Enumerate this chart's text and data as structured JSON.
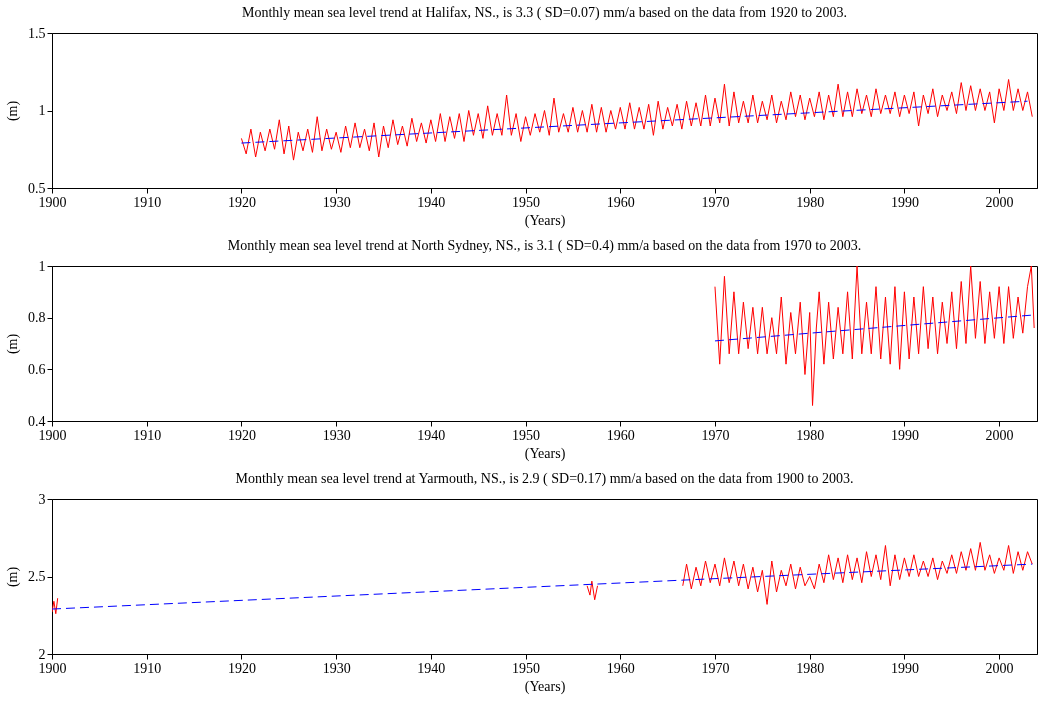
{
  "chart_data": [
    {
      "type": "line",
      "title": "Monthly mean sea level trend at Halifax, NS., is 3.3 ( SD=0.07) mm/a based on the data from 1920 to 2003.",
      "xlabel": "(Years)",
      "ylabel": "(m)",
      "xlim": [
        1900,
        2004
      ],
      "xticks": [
        1900,
        1910,
        1920,
        1930,
        1940,
        1950,
        1960,
        1970,
        1980,
        1990,
        2000
      ],
      "ylim": [
        0.5,
        1.5
      ],
      "yticks": [
        0.5,
        1,
        1.5
      ],
      "grid": false,
      "series": [
        {
          "color": "#ff0000",
          "line_style": "solid",
          "x": [
            1920,
            1920.5,
            1921,
            1921.5,
            1922,
            1922.5,
            1923,
            1923.5,
            1924,
            1924.5,
            1925,
            1925.5,
            1926,
            1926.5,
            1927,
            1927.5,
            1928,
            1928.5,
            1929,
            1929.5,
            1930,
            1930.5,
            1931,
            1931.5,
            1932,
            1932.5,
            1933,
            1933.5,
            1934,
            1934.5,
            1935,
            1935.5,
            1936,
            1936.5,
            1937,
            1937.5,
            1938,
            1938.5,
            1939,
            1939.5,
            1940,
            1940.5,
            1941,
            1941.5,
            1942,
            1942.5,
            1943,
            1943.5,
            1944,
            1944.5,
            1945,
            1945.5,
            1946,
            1946.5,
            1947,
            1947.5,
            1948,
            1948.5,
            1949,
            1949.5,
            1950,
            1950.5,
            1951,
            1951.5,
            1952,
            1952.5,
            1953,
            1953.5,
            1954,
            1954.5,
            1955,
            1955.5,
            1956,
            1956.5,
            1957,
            1957.5,
            1958,
            1958.5,
            1959,
            1959.5,
            1960,
            1960.5,
            1961,
            1961.5,
            1962,
            1962.5,
            1963,
            1963.5,
            1964,
            1964.5,
            1965,
            1965.5,
            1966,
            1966.5,
            1967,
            1967.5,
            1968,
            1968.5,
            1969,
            1969.5,
            1970,
            1970.5,
            1971,
            1971.5,
            1972,
            1972.5,
            1973,
            1973.5,
            1974,
            1974.5,
            1975,
            1975.5,
            1976,
            1976.5,
            1977,
            1977.5,
            1978,
            1978.5,
            1979,
            1979.5,
            1980,
            1980.5,
            1981,
            1981.5,
            1982,
            1982.5,
            1983,
            1983.5,
            1984,
            1984.5,
            1985,
            1985.5,
            1986,
            1986.5,
            1987,
            1987.5,
            1988,
            1988.5,
            1989,
            1989.5,
            1990,
            1990.5,
            1991,
            1991.5,
            1992,
            1992.5,
            1993,
            1993.5,
            1994,
            1994.5,
            1995,
            1995.5,
            1996,
            1996.5,
            1997,
            1997.5,
            1998,
            1998.5,
            1999,
            1999.5,
            2000,
            2000.5,
            2001,
            2001.5,
            2002,
            2002.5,
            2003,
            2003.5
          ],
          "values": [
            0.82,
            0.72,
            0.88,
            0.7,
            0.86,
            0.74,
            0.88,
            0.75,
            0.94,
            0.72,
            0.9,
            0.68,
            0.86,
            0.74,
            0.88,
            0.73,
            0.96,
            0.74,
            0.88,
            0.75,
            0.86,
            0.73,
            0.9,
            0.76,
            0.92,
            0.76,
            0.88,
            0.74,
            0.92,
            0.7,
            0.9,
            0.76,
            0.94,
            0.78,
            0.9,
            0.77,
            0.95,
            0.8,
            0.92,
            0.79,
            0.94,
            0.8,
            0.98,
            0.8,
            0.96,
            0.82,
            0.98,
            0.8,
            1.0,
            0.84,
            0.98,
            0.82,
            1.03,
            0.84,
            0.98,
            0.84,
            1.1,
            0.84,
            0.98,
            0.8,
            0.96,
            0.84,
            0.98,
            0.86,
            1.0,
            0.84,
            1.08,
            0.86,
            0.98,
            0.86,
            1.02,
            0.86,
            1.0,
            0.86,
            1.04,
            0.86,
            1.02,
            0.86,
            1.0,
            0.88,
            1.02,
            0.88,
            1.05,
            0.88,
            1.02,
            0.88,
            1.04,
            0.84,
            1.06,
            0.88,
            1.02,
            0.9,
            1.04,
            0.88,
            1.06,
            0.9,
            1.05,
            0.9,
            1.1,
            0.9,
            1.08,
            0.92,
            1.17,
            0.9,
            1.12,
            0.92,
            1.06,
            0.92,
            1.1,
            0.92,
            1.06,
            0.94,
            1.1,
            0.92,
            1.06,
            0.94,
            1.12,
            0.96,
            1.1,
            0.94,
            1.08,
            0.96,
            1.12,
            0.94,
            1.1,
            0.96,
            1.17,
            0.96,
            1.12,
            0.96,
            1.14,
            0.98,
            1.1,
            0.96,
            1.14,
            0.98,
            1.1,
            0.98,
            1.12,
            0.96,
            1.1,
            0.98,
            1.12,
            0.9,
            1.1,
            0.98,
            1.14,
            0.96,
            1.1,
            1.0,
            1.12,
            0.98,
            1.18,
            1.0,
            1.16,
            1.0,
            1.14,
            1.0,
            1.12,
            0.92,
            1.14,
            1.0,
            1.2,
            1.0,
            1.14,
            1.0,
            1.12,
            0.96
          ]
        },
        {
          "color": "#0000ff",
          "line_style": "dashed",
          "x": [
            1920,
            2003
          ],
          "values": [
            0.79,
            1.06
          ]
        }
      ]
    },
    {
      "type": "line",
      "title": "Monthly mean sea level trend at North Sydney, NS., is 3.1 ( SD=0.4) mm/a based on the data from 1970 to 2003.",
      "xlabel": "(Years)",
      "ylabel": "(m)",
      "xlim": [
        1900,
        2004
      ],
      "xticks": [
        1900,
        1910,
        1920,
        1930,
        1940,
        1950,
        1960,
        1970,
        1980,
        1990,
        2000
      ],
      "ylim": [
        0.4,
        1
      ],
      "yticks": [
        0.4,
        0.6,
        0.8,
        1
      ],
      "grid": false,
      "series": [
        {
          "color": "#ff0000",
          "line_style": "solid",
          "x": [
            1970,
            1970.5,
            1971,
            1971.5,
            1972,
            1972.5,
            1973,
            1973.5,
            1974,
            1974.5,
            1975,
            1975.5,
            1976,
            1976.5,
            1977,
            1977.5,
            1978,
            1978.5,
            1979,
            1979.5,
            1980,
            1980.3,
            1980.7,
            1981,
            1981.5,
            1982,
            1982.5,
            1983,
            1983.5,
            1984,
            1984.5,
            1985,
            1985.5,
            1986,
            1986.5,
            1987,
            1987.5,
            1988,
            1988.5,
            1989,
            1989.5,
            1990,
            1990.5,
            1991,
            1991.5,
            1992,
            1992.5,
            1993,
            1993.5,
            1994,
            1994.5,
            1995,
            1995.5,
            1996,
            1996.5,
            1997,
            1997.5,
            1998,
            1998.5,
            1999,
            1999.5,
            2000,
            2000.5,
            2001,
            2001.5,
            2002,
            2002.5,
            2003,
            2003.4,
            2003.7
          ],
          "values": [
            0.92,
            0.62,
            0.96,
            0.66,
            0.9,
            0.66,
            0.86,
            0.68,
            0.84,
            0.66,
            0.84,
            0.66,
            0.8,
            0.66,
            0.88,
            0.62,
            0.82,
            0.66,
            0.86,
            0.58,
            0.82,
            0.46,
            0.76,
            0.9,
            0.62,
            0.86,
            0.64,
            0.84,
            0.66,
            0.9,
            0.64,
            1.0,
            0.66,
            0.86,
            0.66,
            0.92,
            0.64,
            0.88,
            0.62,
            0.92,
            0.6,
            0.9,
            0.64,
            0.88,
            0.66,
            0.92,
            0.68,
            0.88,
            0.66,
            0.86,
            0.7,
            0.9,
            0.68,
            0.94,
            0.7,
            1.0,
            0.72,
            0.94,
            0.7,
            0.9,
            0.72,
            0.92,
            0.7,
            0.92,
            0.72,
            0.88,
            0.74,
            0.92,
            1.0,
            0.76
          ]
        },
        {
          "color": "#0000ff",
          "line_style": "dashed",
          "x": [
            1970,
            2003.5
          ],
          "values": [
            0.71,
            0.81
          ]
        }
      ]
    },
    {
      "type": "line",
      "title": "Monthly mean sea level trend at Yarmouth, NS., is 2.9 ( SD=0.17) mm/a based on the data from 1900 to 2003.",
      "xlabel": "(Years)",
      "ylabel": "(m)",
      "xlim": [
        1900,
        2004
      ],
      "xticks": [
        1900,
        1910,
        1920,
        1930,
        1940,
        1950,
        1960,
        1970,
        1980,
        1990,
        2000
      ],
      "ylim": [
        2,
        3
      ],
      "yticks": [
        2,
        2.5,
        3
      ],
      "grid": false,
      "series": [
        {
          "color": "#ff0000",
          "line_style": "solid",
          "x": [
            1900,
            1900.2,
            1900.4,
            1900.6,
            1900.8,
            1956.5,
            1956.8,
            1957,
            1957.3,
            1957.6,
            1958,
            1966.6,
            1967,
            1967.5,
            1968,
            1968.5,
            1969,
            1969.5,
            1970,
            1970.5,
            1971,
            1971.5,
            1972,
            1972.5,
            1973,
            1973.5,
            1974,
            1974.5,
            1975,
            1975.5,
            1976,
            1976.5,
            1977,
            1977.5,
            1978,
            1978.5,
            1979,
            1979.5,
            1980,
            1980.5,
            1981,
            1981.5,
            1982,
            1982.5,
            1983,
            1983.5,
            1984,
            1984.5,
            1985,
            1985.5,
            1986,
            1986.5,
            1987,
            1987.5,
            1988,
            1988.5,
            1989,
            1989.5,
            1990,
            1990.5,
            1991,
            1991.5,
            1992,
            1992.5,
            1993,
            1993.5,
            1994,
            1994.5,
            1995,
            1995.5,
            1996,
            1996.5,
            1997,
            1997.5,
            1998,
            1998.5,
            1999,
            1999.5,
            2000,
            2000.5,
            2001,
            2001.5,
            2002,
            2002.5,
            2003,
            2003.5
          ],
          "values": [
            2.27,
            2.34,
            2.26,
            2.36,
            null,
            2.44,
            2.38,
            2.47,
            2.35,
            2.44,
            null,
            2.44,
            2.58,
            2.42,
            2.56,
            2.44,
            2.6,
            2.46,
            2.58,
            2.44,
            2.62,
            2.46,
            2.6,
            2.44,
            2.58,
            2.42,
            2.56,
            2.4,
            2.54,
            2.32,
            2.6,
            2.4,
            2.54,
            2.44,
            2.58,
            2.42,
            2.56,
            2.44,
            2.5,
            2.42,
            2.58,
            2.46,
            2.64,
            2.48,
            2.62,
            2.46,
            2.64,
            2.48,
            2.62,
            2.46,
            2.66,
            2.5,
            2.64,
            2.48,
            2.7,
            2.44,
            2.64,
            2.48,
            2.62,
            2.5,
            2.64,
            2.5,
            2.6,
            2.5,
            2.62,
            2.48,
            2.6,
            2.52,
            2.64,
            2.52,
            2.66,
            2.54,
            2.68,
            2.54,
            2.72,
            2.54,
            2.64,
            2.52,
            2.62,
            2.54,
            2.7,
            2.52,
            2.66,
            2.54,
            2.66,
            2.58
          ]
        },
        {
          "color": "#0000ff",
          "line_style": "dashed",
          "x": [
            1900,
            2003.5
          ],
          "values": [
            2.29,
            2.58
          ]
        }
      ]
    }
  ]
}
